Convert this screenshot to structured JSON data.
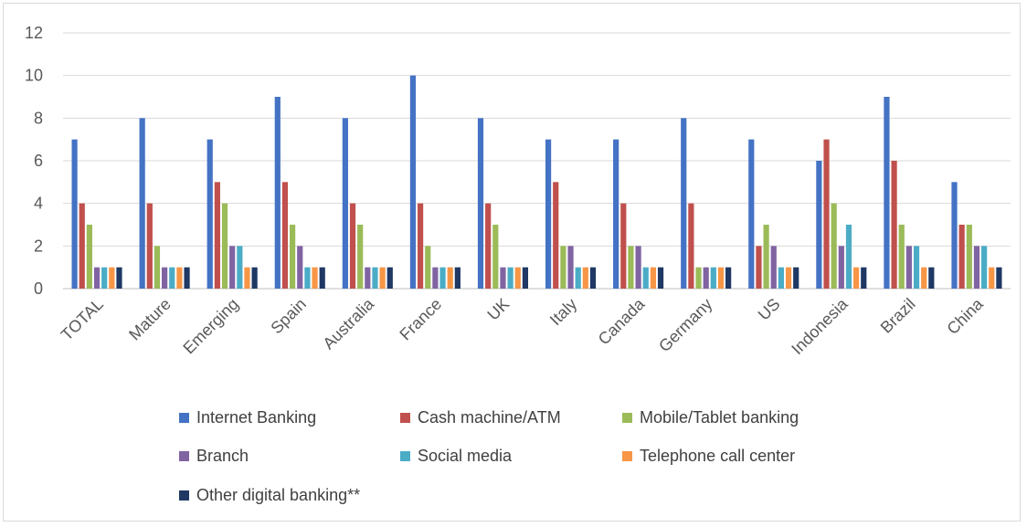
{
  "chart_data": {
    "type": "bar",
    "title": "",
    "xlabel": "",
    "ylabel": "",
    "ylim": [
      0,
      12
    ],
    "yticks": [
      0,
      2,
      4,
      6,
      8,
      10,
      12
    ],
    "grid": true,
    "legend_position": "bottom",
    "categories": [
      "TOTAL",
      "Mature",
      "Emerging",
      "Spain",
      "Australia",
      "France",
      "UK",
      "Italy",
      "Canada",
      "Germany",
      "US",
      "Indonesia",
      "Brazil",
      "China"
    ],
    "series": [
      {
        "name": "Internet Banking",
        "color": "#4472c4",
        "values": [
          7,
          8,
          7,
          9,
          8,
          10,
          8,
          7,
          7,
          8,
          7,
          6,
          9,
          5
        ]
      },
      {
        "name": "Cash machine/ATM",
        "color": "#c0504d",
        "values": [
          4,
          4,
          5,
          5,
          4,
          4,
          4,
          5,
          4,
          4,
          2,
          7,
          6,
          3
        ]
      },
      {
        "name": "Mobile/Tablet banking",
        "color": "#9bbb59",
        "values": [
          3,
          2,
          4,
          3,
          3,
          2,
          3,
          2,
          2,
          1,
          3,
          4,
          3,
          3
        ]
      },
      {
        "name": "Branch",
        "color": "#8064a2",
        "values": [
          1,
          1,
          2,
          2,
          1,
          1,
          1,
          2,
          2,
          1,
          2,
          2,
          2,
          2
        ]
      },
      {
        "name": "Social media",
        "color": "#4bacc6",
        "values": [
          1,
          1,
          2,
          1,
          1,
          1,
          1,
          1,
          1,
          1,
          1,
          3,
          2,
          2
        ]
      },
      {
        "name": "Telephone call center",
        "color": "#f79646",
        "values": [
          1,
          1,
          1,
          1,
          1,
          1,
          1,
          1,
          1,
          1,
          1,
          1,
          1,
          1
        ]
      },
      {
        "name": "Other digital banking**",
        "color": "#1f3864",
        "values": [
          1,
          1,
          1,
          1,
          1,
          1,
          1,
          1,
          1,
          1,
          1,
          1,
          1,
          1
        ]
      }
    ]
  }
}
